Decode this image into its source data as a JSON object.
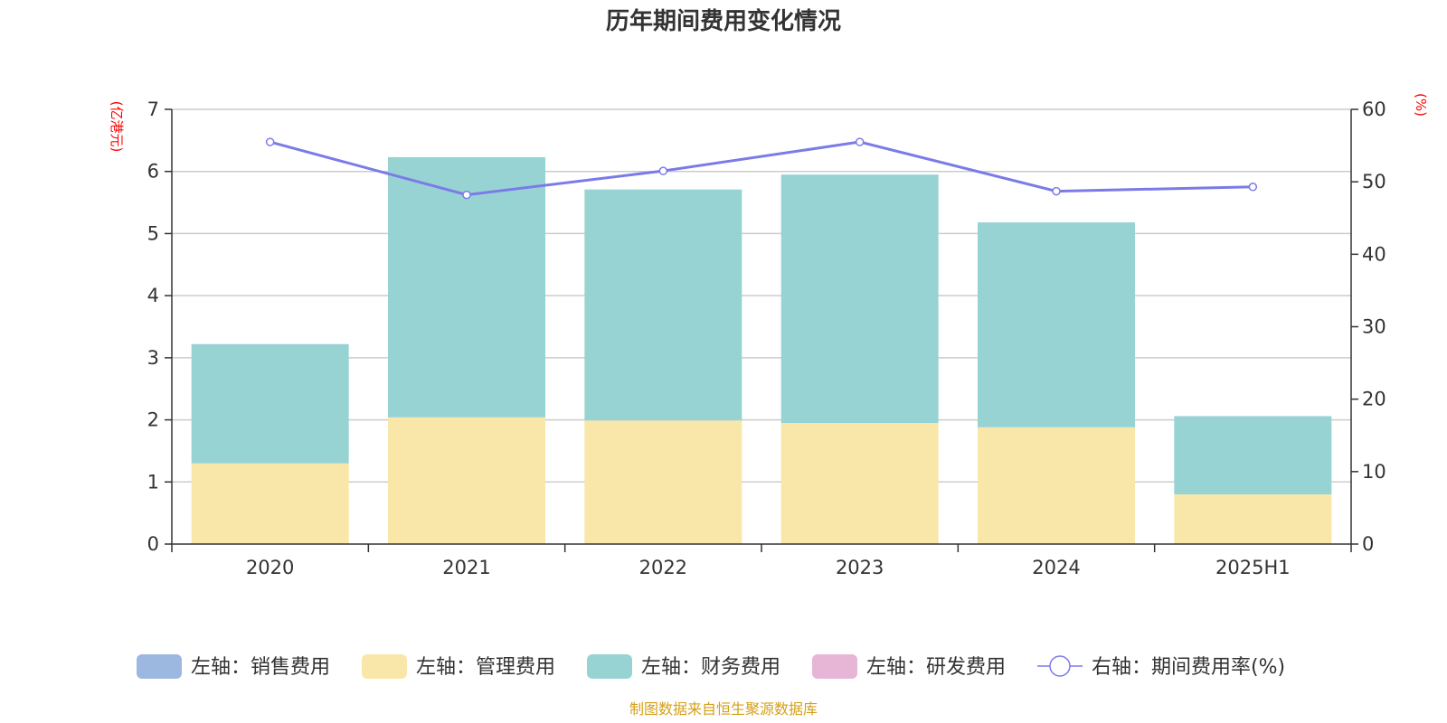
{
  "chart_data": {
    "type": "bar",
    "title": "历年期间费用变化情况",
    "categories": [
      "2020",
      "2021",
      "2022",
      "2023",
      "2024",
      "2025H1"
    ],
    "y_left": {
      "unit": "(亿港元)",
      "range": [
        0,
        7
      ],
      "ticks": [
        "0",
        "1",
        "2",
        "3",
        "4",
        "5",
        "6",
        "7"
      ]
    },
    "y_right": {
      "unit": "(%)",
      "range": [
        0,
        60
      ],
      "ticks": [
        "0",
        "10",
        "20",
        "30",
        "40",
        "50",
        "60"
      ]
    },
    "stacked": true,
    "series": [
      {
        "name": "左轴：销售费用",
        "kind": "bar",
        "axis": "left",
        "color": "#9db8e0",
        "values": [
          0,
          0,
          0,
          0,
          0,
          0
        ]
      },
      {
        "name": "左轴：管理费用",
        "kind": "bar",
        "axis": "left",
        "color": "#f8e7a8",
        "values": [
          1.3,
          2.04,
          1.99,
          1.95,
          1.88,
          0.8
        ]
      },
      {
        "name": "左轴：财务费用",
        "kind": "bar",
        "axis": "left",
        "color": "#98d3d4",
        "values": [
          1.92,
          4.19,
          3.72,
          4.0,
          3.3,
          1.26
        ]
      },
      {
        "name": "左轴：研发费用",
        "kind": "bar",
        "axis": "left",
        "color": "#e7b6d6",
        "values": [
          0,
          0,
          0,
          0,
          0,
          0
        ]
      },
      {
        "name": "右轴：期间费用率(%)",
        "kind": "line",
        "axis": "right",
        "color": "#7b7be8",
        "values": [
          55.5,
          48.2,
          51.5,
          55.5,
          48.7,
          49.3
        ]
      }
    ],
    "grid": true,
    "legend_position": "bottom",
    "source": "制图数据来自恒生聚源数据库"
  }
}
